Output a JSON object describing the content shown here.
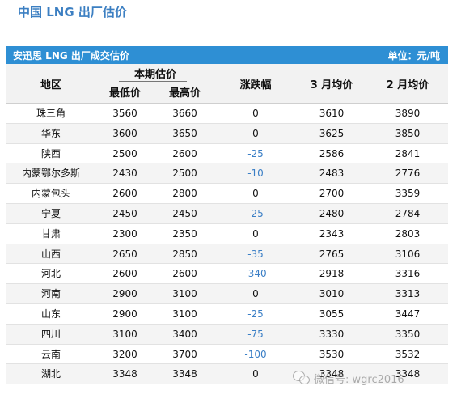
{
  "page_title": "中国 LNG 出厂估价",
  "table_bar": {
    "title": "安迅思 LNG 出厂成交估价",
    "unit": "单位：元/吨"
  },
  "headers": {
    "region": "地区",
    "current_group": "本期估价",
    "low": "最低价",
    "high": "最高价",
    "change": "涨跌幅",
    "march_avg": "3 月均价",
    "feb_avg": "2 月均价"
  },
  "rows": [
    {
      "region": "珠三角",
      "low": "3560",
      "high": "3660",
      "change": "0",
      "mar": "3610",
      "feb": "3890"
    },
    {
      "region": "华东",
      "low": "3600",
      "high": "3650",
      "change": "0",
      "mar": "3625",
      "feb": "3850"
    },
    {
      "region": "陕西",
      "low": "2500",
      "high": "2600",
      "change": "-25",
      "mar": "2586",
      "feb": "2841"
    },
    {
      "region": "内蒙鄂尔多斯",
      "low": "2430",
      "high": "2500",
      "change": "-10",
      "mar": "2483",
      "feb": "2776"
    },
    {
      "region": "内蒙包头",
      "low": "2600",
      "high": "2800",
      "change": "0",
      "mar": "2700",
      "feb": "3359"
    },
    {
      "region": "宁夏",
      "low": "2450",
      "high": "2450",
      "change": "-25",
      "mar": "2480",
      "feb": "2784"
    },
    {
      "region": "甘肃",
      "low": "2300",
      "high": "2350",
      "change": "0",
      "mar": "2343",
      "feb": "2803"
    },
    {
      "region": "山西",
      "low": "2650",
      "high": "2850",
      "change": "-35",
      "mar": "2765",
      "feb": "3106"
    },
    {
      "region": "河北",
      "low": "2600",
      "high": "2600",
      "change": "-340",
      "mar": "2918",
      "feb": "3316"
    },
    {
      "region": "河南",
      "low": "2900",
      "high": "3100",
      "change": "0",
      "mar": "3010",
      "feb": "3313"
    },
    {
      "region": "山东",
      "low": "2900",
      "high": "3100",
      "change": "-25",
      "mar": "3055",
      "feb": "3447"
    },
    {
      "region": "四川",
      "low": "3100",
      "high": "3400",
      "change": "-75",
      "mar": "3330",
      "feb": "3350"
    },
    {
      "region": "云南",
      "low": "3200",
      "high": "3700",
      "change": "-100",
      "mar": "3530",
      "feb": "3532"
    },
    {
      "region": "湖北",
      "low": "3348",
      "high": "3348",
      "change": "0",
      "mar": "3348",
      "feb": "3348"
    }
  ],
  "watermark": {
    "text": "微信号: wgrc2016",
    "icon": "wechat-icon"
  },
  "colors": {
    "title": "#3c7fc2",
    "bar": "#2e8fd4",
    "negative": "#3b7fc6"
  }
}
